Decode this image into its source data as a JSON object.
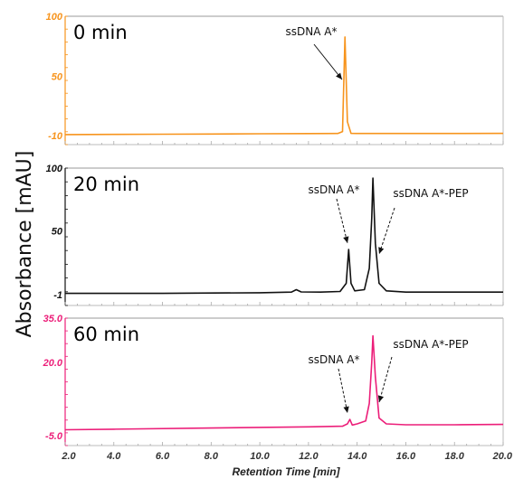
{
  "y_axis_label": "Absorbance [mAU]",
  "x_axis_label": "Retention Time [min]",
  "x_ticks": [
    "2.0",
    "4.0",
    "6.0",
    "8.0",
    "10.0",
    "12.0",
    "14.0",
    "16.0",
    "18.0",
    "20.0"
  ],
  "chart_data": [
    {
      "type": "line",
      "title": "0 min",
      "color": "#f7941d",
      "xlim": [
        2.0,
        20.0
      ],
      "ylim": [
        -10,
        100
      ],
      "y_ticks": [
        "100",
        "50",
        "-10"
      ],
      "series": [
        {
          "x": [
            2.0,
            4.0,
            6.0,
            8.0,
            10.0,
            12.0,
            13.2,
            13.4,
            13.5,
            13.6,
            13.75,
            14.0,
            16.0,
            18.0,
            20.0
          ],
          "y": [
            -9,
            -8.8,
            -8.6,
            -8.4,
            -8.2,
            -8,
            -7.9,
            -6,
            90,
            4,
            -7.8,
            -7.9,
            -7.9,
            -7.9,
            -7.8
          ]
        }
      ],
      "annotations": [
        {
          "text": "ssDNA A*",
          "x": 13.3,
          "y": 52,
          "style": "solid"
        }
      ]
    },
    {
      "type": "line",
      "title": "20 min",
      "color": "#111111",
      "xlim": [
        2.0,
        20.0
      ],
      "ylim": [
        -1,
        100
      ],
      "y_ticks": [
        "100",
        "50",
        "-1"
      ],
      "series": [
        {
          "x": [
            2.0,
            6.0,
            10.0,
            11.3,
            11.5,
            11.7,
            12.5,
            13.3,
            13.55,
            13.65,
            13.75,
            13.9,
            14.3,
            14.5,
            14.6,
            14.65,
            14.75,
            14.9,
            15.2,
            16.0,
            18.0,
            20.0
          ],
          "y": [
            0,
            0,
            0.5,
            1,
            3,
            1.2,
            1,
            1.5,
            8,
            35,
            8,
            2,
            3,
            20,
            60,
            92,
            40,
            8,
            2,
            1,
            1,
            1
          ]
        }
      ],
      "annotations": [
        {
          "text": "ssDNA A*",
          "x": 13.6,
          "y": 38,
          "style": "dashed"
        },
        {
          "text": "ssDNA A*-PEP",
          "x": 14.8,
          "y": 30,
          "style": "dashed"
        }
      ]
    },
    {
      "type": "line",
      "title": "60 min",
      "color": "#ec1e79",
      "xlim": [
        2.0,
        20.0
      ],
      "ylim": [
        -5.0,
        35.0
      ],
      "y_ticks": [
        "35.0",
        "20.0",
        "-5.0"
      ],
      "series": [
        {
          "x": [
            2.0,
            4.0,
            8.0,
            12.0,
            13.4,
            13.6,
            13.7,
            13.8,
            14.0,
            14.35,
            14.5,
            14.6,
            14.65,
            14.75,
            14.9,
            15.2,
            16.0,
            18.0,
            20.0
          ],
          "y": [
            -3,
            -2.8,
            -2.4,
            -2,
            -1.8,
            -1,
            0.5,
            -1.4,
            -1,
            0,
            6,
            20,
            29,
            15,
            1,
            -1,
            -1.3,
            -1.3,
            -1.2
          ]
        }
      ],
      "annotations": [
        {
          "text": "ssDNA A*",
          "x": 13.6,
          "y": 1,
          "style": "dashed"
        },
        {
          "text": "ssDNA A*-PEP",
          "x": 14.7,
          "y": 7,
          "style": "dashed"
        }
      ]
    }
  ]
}
